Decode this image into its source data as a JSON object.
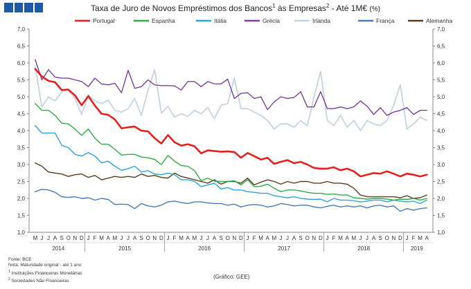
{
  "header": {
    "title_main": "Taxa de Juro de Novos Empréstimos dos Bancos",
    "title_sup1": "1",
    "title_mid": " às Empresas",
    "title_sup2": "2",
    "title_tail": " - Até 1M€",
    "title_unit": "(%)"
  },
  "footnotes": {
    "line1": "Fonte: BCE",
    "line2": "Nota: Maturidade original - até 1 ano",
    "line3_sup": "1",
    "line3": "Instituições Financeiras Monetárias",
    "line4_sup": "2",
    "line4": "Sociedades Não Financeiras"
  },
  "source": "(Gráfico: GEE)",
  "colors": {
    "logo": "#1f5aa6",
    "axis": "#888888",
    "tick_text": "#333333"
  },
  "chart_data": {
    "type": "line",
    "title": "Taxa de Juro de Novos Empréstimos dos Bancos às Empresas - Até 1M€ (%)",
    "ylim": [
      1.0,
      7.0
    ],
    "yticks": [
      "1,0",
      "1,5",
      "2,0",
      "2,5",
      "3,0",
      "3,5",
      "4,0",
      "4,5",
      "5,0",
      "5,5",
      "6,0",
      "6,5",
      "7,0"
    ],
    "legend_position": "top",
    "grid": false,
    "month_labels": [
      "M",
      "J",
      "J",
      "A",
      "S",
      "O",
      "N",
      "D",
      "J",
      "F",
      "M",
      "A",
      "M",
      "J",
      "J",
      "A",
      "S",
      "O",
      "N",
      "D",
      "J",
      "F",
      "M",
      "A",
      "M",
      "J",
      "J",
      "A",
      "S",
      "O",
      "N",
      "D",
      "J",
      "F",
      "M",
      "A",
      "M",
      "J",
      "J",
      "A",
      "S",
      "O",
      "N",
      "D",
      "J",
      "F",
      "M",
      "A",
      "M",
      "J",
      "J",
      "A",
      "S",
      "O",
      "N",
      "D",
      "J",
      "F",
      "M",
      "A"
    ],
    "years": [
      {
        "label": "2014",
        "start": 0,
        "end": 7
      },
      {
        "label": "2015",
        "start": 8,
        "end": 19
      },
      {
        "label": "2016",
        "start": 20,
        "end": 31
      },
      {
        "label": "2017",
        "start": 32,
        "end": 43
      },
      {
        "label": "2018",
        "start": 44,
        "end": 55
      },
      {
        "label": "2019",
        "start": 56,
        "end": 59
      }
    ],
    "series": [
      {
        "name": "Portugal",
        "color": "#e41f1f",
        "width": 2.6,
        "values": [
          5.82,
          5.6,
          5.47,
          5.43,
          5.2,
          5.21,
          5.04,
          4.75,
          5.02,
          4.74,
          4.5,
          4.47,
          4.33,
          4.07,
          4.1,
          4.12,
          4.0,
          3.98,
          3.78,
          3.62,
          3.87,
          3.66,
          3.56,
          3.6,
          3.54,
          3.33,
          3.42,
          3.4,
          3.38,
          3.39,
          3.37,
          3.2,
          3.34,
          3.25,
          3.15,
          3.2,
          3.02,
          3.08,
          3.13,
          3.04,
          3.08,
          3.0,
          2.9,
          2.88,
          2.88,
          2.92,
          2.83,
          2.88,
          2.8,
          2.65,
          2.7,
          2.75,
          2.73,
          2.8,
          2.73,
          2.65,
          2.73,
          2.7,
          2.65,
          2.7
        ]
      },
      {
        "name": "Espanha",
        "color": "#2eab45",
        "width": 1.4,
        "values": [
          4.8,
          4.6,
          4.6,
          4.45,
          4.22,
          4.2,
          4.05,
          3.86,
          4.05,
          3.78,
          3.6,
          3.6,
          3.45,
          3.28,
          3.3,
          3.3,
          3.22,
          3.2,
          3.15,
          3.0,
          3.27,
          3.1,
          2.97,
          2.95,
          2.82,
          2.52,
          2.6,
          2.51,
          2.5,
          2.5,
          2.52,
          2.4,
          2.55,
          2.35,
          2.36,
          2.42,
          2.3,
          2.2,
          2.25,
          2.25,
          2.22,
          2.18,
          2.15,
          2.15,
          2.12,
          2.13,
          2.1,
          2.1,
          2.02,
          2.0,
          1.98,
          2.0,
          2.0,
          1.98,
          1.95,
          1.98,
          1.97,
          2.0,
          1.95,
          2.0
        ]
      },
      {
        "name": "Itália",
        "color": "#2aa3d8",
        "width": 1.4,
        "values": [
          4.15,
          3.93,
          3.93,
          3.93,
          3.57,
          3.5,
          3.3,
          3.25,
          3.35,
          3.25,
          3.05,
          3.1,
          2.95,
          2.83,
          2.88,
          2.95,
          2.78,
          2.82,
          2.72,
          2.7,
          2.75,
          2.7,
          2.55,
          2.55,
          2.5,
          2.35,
          2.4,
          2.45,
          2.28,
          2.32,
          2.25,
          2.25,
          2.2,
          2.18,
          2.15,
          2.15,
          2.08,
          2.05,
          2.02,
          2.05,
          2.0,
          1.98,
          1.97,
          1.98,
          1.9,
          2.0,
          1.95,
          1.95,
          1.93,
          1.9,
          1.92,
          1.95,
          1.95,
          1.9,
          1.95,
          1.92,
          1.9,
          1.92,
          1.85,
          1.95
        ]
      },
      {
        "name": "Grécia",
        "color": "#7b3f9a",
        "width": 1.4,
        "values": [
          6.1,
          5.5,
          5.8,
          5.58,
          5.55,
          5.55,
          5.5,
          5.45,
          5.3,
          5.55,
          5.38,
          5.35,
          5.4,
          5.12,
          5.78,
          5.25,
          5.3,
          5.5,
          5.35,
          5.33,
          5.33,
          5.32,
          5.2,
          5.45,
          5.45,
          5.3,
          5.45,
          5.38,
          5.38,
          5.52,
          4.95,
          5.1,
          5.12,
          4.95,
          5.0,
          4.62,
          4.85,
          5.0,
          4.95,
          4.98,
          5.15,
          4.7,
          4.7,
          5.15,
          4.65,
          4.65,
          4.7,
          4.65,
          4.7,
          4.88,
          4.72,
          4.48,
          4.68,
          4.45,
          4.55,
          4.6,
          4.68,
          4.48,
          4.6,
          4.6
        ]
      },
      {
        "name": "Irlanda",
        "color": "#c4d3e3",
        "width": 1.8,
        "values": [
          5.9,
          4.7,
          5.0,
          4.88,
          5.15,
          5.22,
          4.95,
          4.48,
          5.05,
          4.88,
          4.8,
          4.9,
          4.6,
          4.55,
          4.65,
          4.95,
          4.45,
          5.2,
          5.8,
          4.52,
          4.72,
          4.4,
          4.5,
          4.42,
          4.6,
          4.5,
          4.68,
          4.35,
          4.75,
          4.8,
          5.55,
          4.65,
          4.65,
          4.55,
          4.45,
          4.3,
          4.05,
          4.2,
          4.2,
          4.1,
          4.3,
          4.15,
          5.0,
          5.75,
          4.3,
          4.15,
          4.45,
          4.1,
          4.3,
          4.0,
          4.3,
          4.2,
          4.15,
          4.3,
          4.75,
          5.35,
          4.05,
          4.2,
          4.4,
          4.3
        ]
      },
      {
        "name": "França",
        "color": "#4a79b6",
        "width": 1.4,
        "values": [
          2.2,
          2.27,
          2.25,
          2.18,
          2.05,
          2.03,
          2.05,
          2.0,
          2.02,
          1.95,
          2.0,
          1.97,
          1.82,
          1.83,
          1.82,
          1.7,
          1.85,
          1.78,
          1.75,
          1.8,
          1.9,
          1.92,
          1.88,
          1.85,
          1.9,
          1.9,
          1.87,
          1.85,
          1.85,
          1.8,
          1.83,
          1.75,
          1.8,
          1.82,
          1.8,
          1.75,
          1.78,
          1.85,
          1.82,
          1.78,
          1.8,
          1.8,
          1.75,
          1.72,
          1.77,
          1.8,
          1.75,
          1.78,
          1.75,
          1.78,
          1.72,
          1.78,
          1.8,
          1.75,
          1.78,
          1.62,
          1.7,
          1.65,
          1.7,
          1.72
        ]
      },
      {
        "name": "Alemanha",
        "color": "#5b3a1a",
        "width": 1.4,
        "values": [
          3.05,
          2.95,
          2.78,
          2.75,
          2.72,
          2.65,
          2.7,
          2.72,
          2.62,
          2.68,
          2.55,
          2.6,
          2.65,
          2.62,
          2.65,
          2.62,
          2.72,
          2.65,
          2.68,
          2.62,
          2.6,
          2.75,
          2.65,
          2.6,
          2.55,
          2.5,
          2.45,
          2.55,
          2.42,
          2.5,
          2.5,
          2.45,
          2.6,
          2.4,
          2.48,
          2.55,
          2.5,
          2.42,
          2.5,
          2.45,
          2.5,
          2.5,
          2.45,
          2.45,
          2.5,
          2.45,
          2.45,
          2.42,
          2.3,
          2.1,
          2.05,
          2.05,
          2.05,
          2.05,
          2.05,
          2.02,
          2.08,
          2.0,
          2.02,
          2.1
        ]
      }
    ]
  }
}
